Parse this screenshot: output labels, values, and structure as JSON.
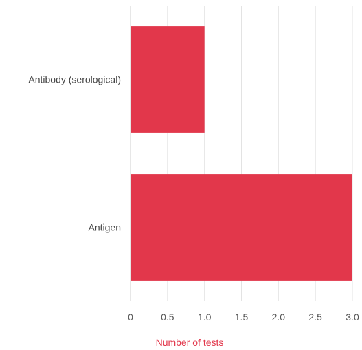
{
  "chart_data": {
    "type": "bar",
    "orientation": "horizontal",
    "categories": [
      "Antibody (serological)",
      "Antigen"
    ],
    "values": [
      1,
      3
    ],
    "title": "",
    "xlabel": "Number of tests",
    "ylabel": "",
    "xlim": [
      0,
      3
    ],
    "xticks": [
      "0",
      "0.5",
      "1.0",
      "1.5",
      "2.0",
      "2.5",
      "3.0"
    ],
    "grid": "vertical",
    "legend": "none",
    "colors": {
      "bar": "#e2374b",
      "xlabel": "#e2374b",
      "grid": "#e3e3e3",
      "axis": "#cfcfcf"
    }
  }
}
